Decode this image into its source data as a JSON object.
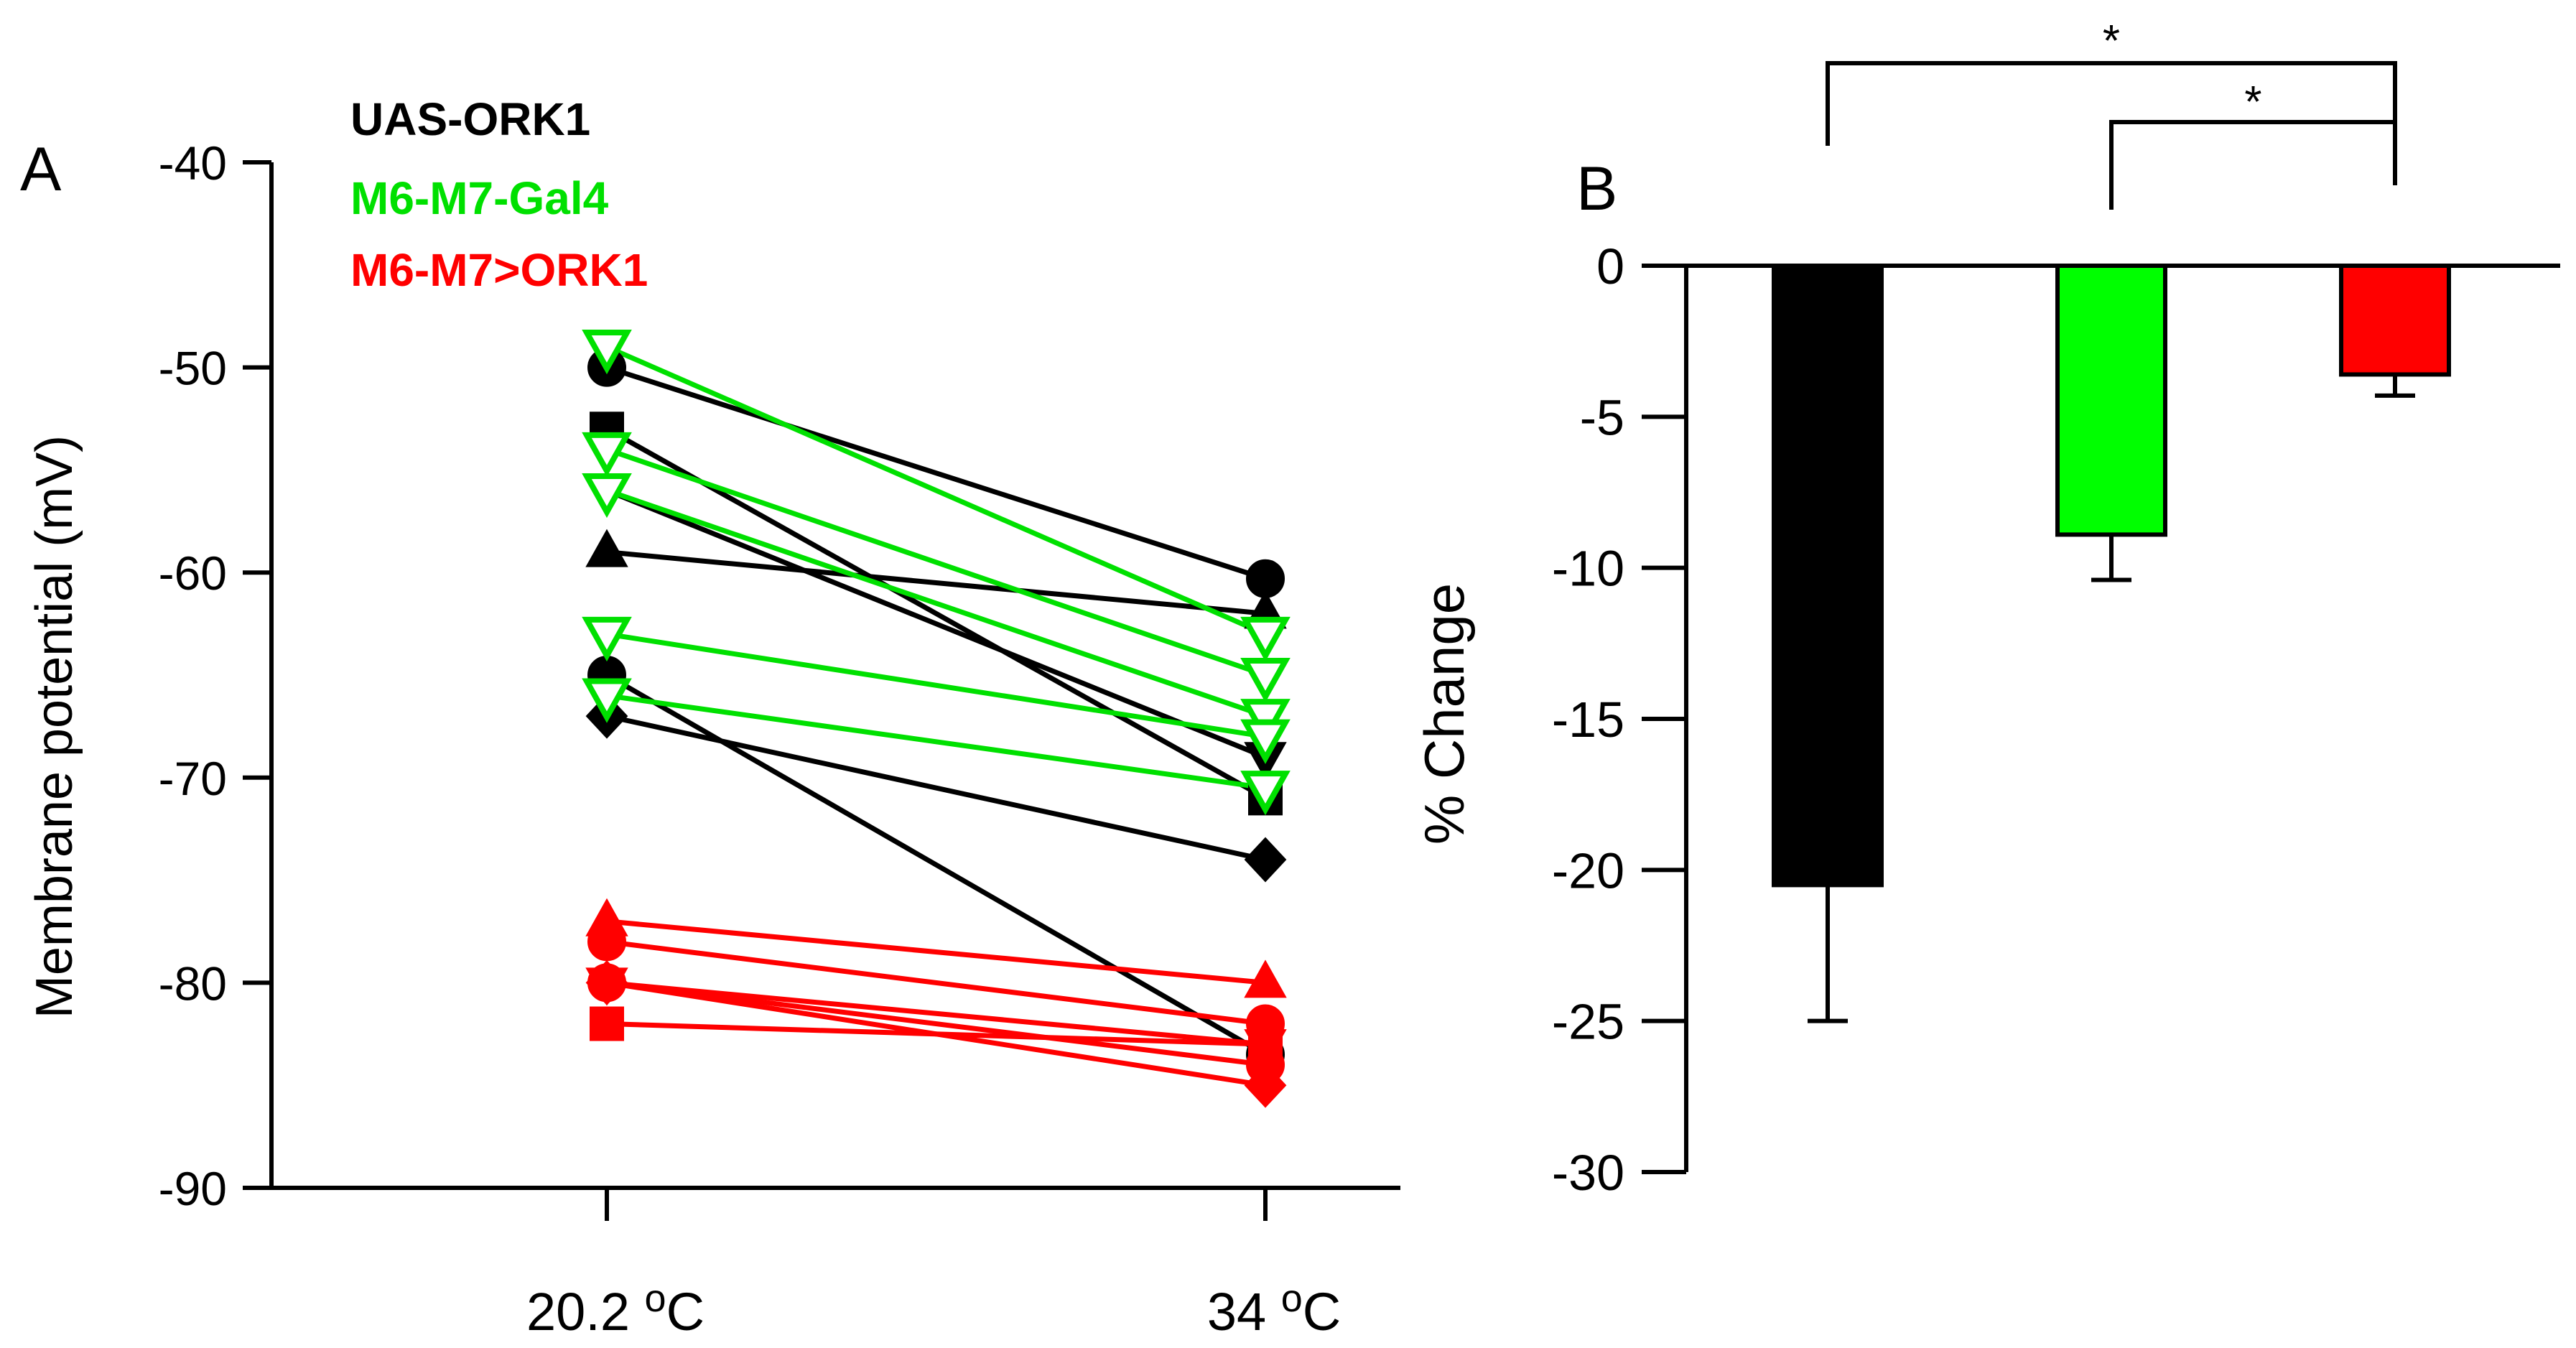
{
  "chart_data": [
    {
      "panel_label": "A",
      "type": "line",
      "title": "",
      "xlabel": "",
      "ylabel": "Membrane potential (mV)",
      "categories": [
        "20.2",
        "34"
      ],
      "category_unit": "o",
      "category_suffix": "C",
      "ylim": [
        -90,
        -40
      ],
      "yticks": [
        -90,
        -80,
        -70,
        -60,
        -50,
        -40
      ],
      "grid": false,
      "legend_position": "top-left",
      "groups": [
        {
          "name": "UAS-ORK1",
          "color": "#000000",
          "open_marker": false,
          "lines": [
            {
              "marker": "circle",
              "values": [
                -50,
                -60.3
              ]
            },
            {
              "marker": "square",
              "values": [
                -53,
                -71
              ]
            },
            {
              "marker": "triangle-up",
              "values": [
                -59,
                -62
              ]
            },
            {
              "marker": "circle",
              "values": [
                -65,
                -83.5
              ]
            },
            {
              "marker": "triangle-down",
              "values": [
                -56,
                -69
              ]
            },
            {
              "marker": "diamond",
              "values": [
                -67,
                -74
              ]
            }
          ]
        },
        {
          "name": "M6-M7-Gal4",
          "color": "#00e000",
          "open_marker": true,
          "lines": [
            {
              "marker": "triangle-down",
              "values": [
                -49,
                -63
              ]
            },
            {
              "marker": "triangle-down",
              "values": [
                -54,
                -65
              ]
            },
            {
              "marker": "triangle-down",
              "values": [
                -56,
                -67
              ]
            },
            {
              "marker": "triangle-down",
              "values": [
                -63,
                -68
              ]
            },
            {
              "marker": "triangle-down",
              "values": [
                -66,
                -70.5
              ]
            }
          ]
        },
        {
          "name": "M6-M7>ORK1",
          "color": "#ff0000",
          "open_marker": false,
          "lines": [
            {
              "marker": "triangle-up",
              "values": [
                -77,
                -80
              ]
            },
            {
              "marker": "circle",
              "values": [
                -78,
                -82
              ]
            },
            {
              "marker": "diamond",
              "values": [
                -80,
                -85
              ]
            },
            {
              "marker": "circle",
              "values": [
                -80,
                -84
              ]
            },
            {
              "marker": "triangle-down",
              "values": [
                -80,
                -83
              ]
            },
            {
              "marker": "square",
              "values": [
                -82,
                -83
              ]
            }
          ]
        }
      ]
    },
    {
      "panel_label": "B",
      "type": "bar",
      "title": "",
      "xlabel": "",
      "ylabel": "% Change",
      "categories": [
        "UAS-ORK1",
        "M6-M7-Gal4",
        "M6-M7>ORK1"
      ],
      "values": [
        -20.5,
        -8.9,
        -3.6
      ],
      "errors": [
        4.5,
        1.5,
        0.7
      ],
      "colors": [
        "#000000",
        "#00ff00",
        "#ff0000"
      ],
      "ylim": [
        -30,
        0
      ],
      "yticks": [
        -30,
        -25,
        -20,
        -15,
        -10,
        -5,
        0
      ],
      "grid": false,
      "significance": [
        {
          "from": 0,
          "to": 2,
          "label": "*"
        },
        {
          "from": 1,
          "to": 2,
          "label": "*"
        }
      ]
    }
  ]
}
